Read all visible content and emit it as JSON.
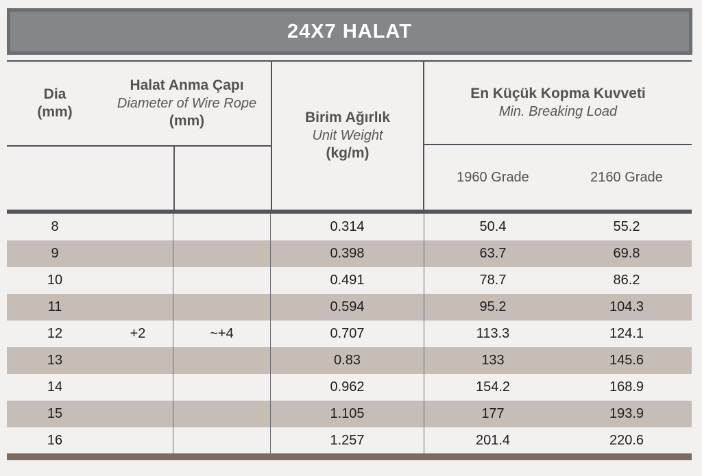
{
  "title": "24X7 HALAT",
  "columns": {
    "dia_tr": "Dia",
    "dia_unit": "(mm)",
    "anma_tr": "Halat Anma Çapı",
    "anma_en": "Diameter of Wire Rope",
    "anma_unit": "(mm)",
    "weight_tr": "Birim Ağırlık",
    "weight_en": "Unit Weight",
    "weight_unit": "(kg/m)",
    "breaking_tr": "En Küçük Kopma Kuvveti",
    "breaking_en": "Min. Breaking Load",
    "grade_1960": "1960 Grade",
    "grade_2160": "2160 Grade"
  },
  "rows": [
    {
      "dia": "8",
      "tol_plus": "",
      "tol_approx": "",
      "unit_weight": "0.314",
      "load_1960": "50.4",
      "load_2160": "55.2"
    },
    {
      "dia": "9",
      "tol_plus": "",
      "tol_approx": "",
      "unit_weight": "0.398",
      "load_1960": "63.7",
      "load_2160": "69.8"
    },
    {
      "dia": "10",
      "tol_plus": "",
      "tol_approx": "",
      "unit_weight": "0.491",
      "load_1960": "78.7",
      "load_2160": "86.2"
    },
    {
      "dia": "11",
      "tol_plus": "",
      "tol_approx": "",
      "unit_weight": "0.594",
      "load_1960": "95.2",
      "load_2160": "104.3"
    },
    {
      "dia": "12",
      "tol_plus": "+2",
      "tol_approx": "~+4",
      "unit_weight": "0.707",
      "load_1960": "113.3",
      "load_2160": "124.1"
    },
    {
      "dia": "13",
      "tol_plus": "",
      "tol_approx": "",
      "unit_weight": "0.83",
      "load_1960": "133",
      "load_2160": "145.6"
    },
    {
      "dia": "14",
      "tol_plus": "",
      "tol_approx": "",
      "unit_weight": "0.962",
      "load_1960": "154.2",
      "load_2160": "168.9"
    },
    {
      "dia": "15",
      "tol_plus": "",
      "tol_approx": "",
      "unit_weight": "1.105",
      "load_1960": "177",
      "load_2160": "193.9"
    },
    {
      "dia": "16",
      "tol_plus": "",
      "tol_approx": "",
      "unit_weight": "1.257",
      "load_1960": "201.4",
      "load_2160": "220.6"
    }
  ],
  "colors": {
    "page_bg": "#f3f1ef",
    "title_bar": "#85868a",
    "title_bar_edge": "#6c6e72",
    "header_rule": "#4f5158",
    "thick_rule": "#53555b",
    "shaded_row": "#c7bdb7",
    "bottom_bar": "#7b6b60",
    "header_text": "#575052",
    "data_text": "#1e1d1f"
  }
}
